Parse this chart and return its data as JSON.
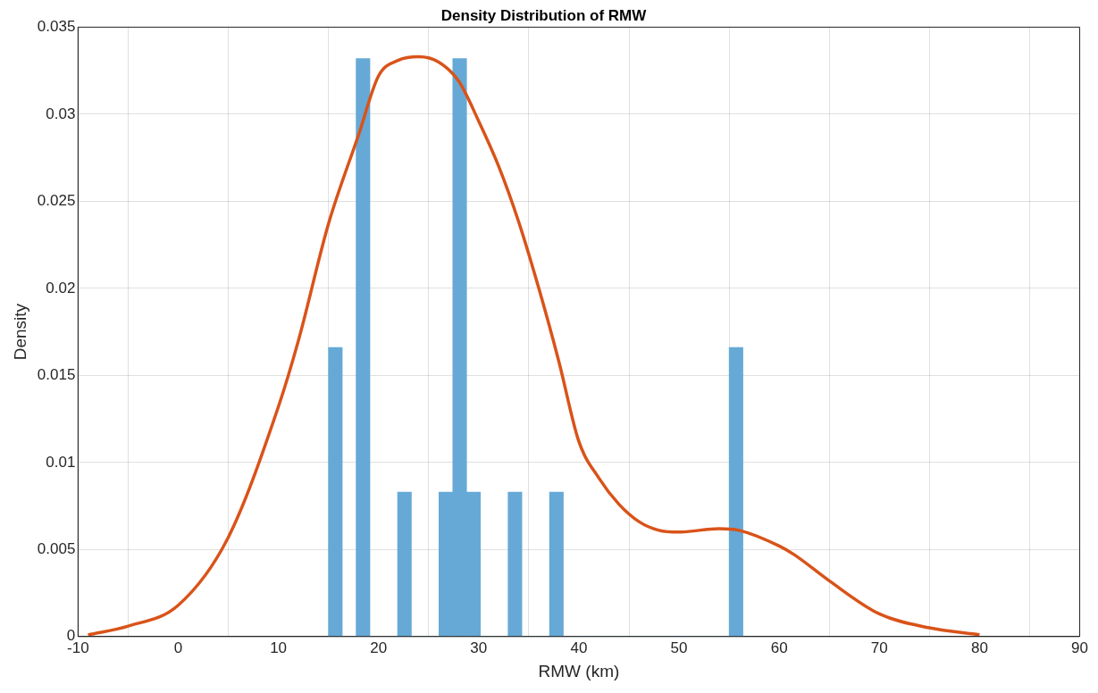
{
  "chart_data": {
    "type": "histogram",
    "title": "Density Distribution of RMW",
    "xlabel": "RMW (km)",
    "ylabel": "Density",
    "bins": [
      15,
      16.38,
      17.76,
      19.14,
      20.52,
      21.9,
      23.28,
      24.66,
      26.03,
      27.41,
      28.79,
      30.17,
      31.55,
      32.93,
      34.31,
      35.69,
      37.07,
      38.45,
      39.83,
      41.21,
      42.59,
      43.97,
      45.34,
      46.72,
      48.1,
      49.48,
      50.86,
      52.24,
      53.62,
      55,
      56.38
    ],
    "values": [
      0.0166,
      0,
      0.0332,
      0,
      0,
      0.0083,
      0,
      0,
      0.0083,
      0.0332,
      0.0083,
      0,
      0,
      0.0083,
      0,
      0,
      0.0083,
      0,
      0,
      0,
      0,
      0,
      0,
      0,
      0,
      0,
      0,
      0,
      0,
      0.0166
    ],
    "color": "#66a9d6",
    "series": [
      {
        "type": "line",
        "color": "#d95319",
        "x": [
          -9,
          -5,
          0,
          5,
          10,
          12,
          15,
          18,
          20,
          22,
          24,
          26,
          28,
          30,
          32,
          34,
          36,
          38,
          40,
          42,
          44,
          46,
          48,
          50,
          54,
          56,
          60,
          61.5,
          65,
          70,
          75,
          80
        ],
        "values": [
          0.0001,
          0.0006,
          0.0018,
          0.0057,
          0.0132,
          0.017,
          0.0237,
          0.0288,
          0.0322,
          0.0331,
          0.0333,
          0.033,
          0.0319,
          0.0296,
          0.027,
          0.0238,
          0.02,
          0.0158,
          0.0112,
          0.0091,
          0.0076,
          0.0066,
          0.0061,
          0.006,
          0.0062,
          0.0061,
          0.0052,
          0.0047,
          0.0032,
          0.0013,
          0.0005,
          0.0001
        ]
      }
    ],
    "xlim": [
      -10,
      90
    ],
    "xticks": [
      -10,
      0,
      10,
      20,
      30,
      40,
      50,
      60,
      70,
      80,
      90
    ],
    "ylim": [
      0,
      0.035
    ],
    "yticks": [
      0,
      0.005,
      0.01,
      0.015,
      0.02,
      0.025,
      0.03,
      0.035
    ],
    "grid": true,
    "legend": false,
    "marker": "none",
    "line_style": "solid"
  }
}
